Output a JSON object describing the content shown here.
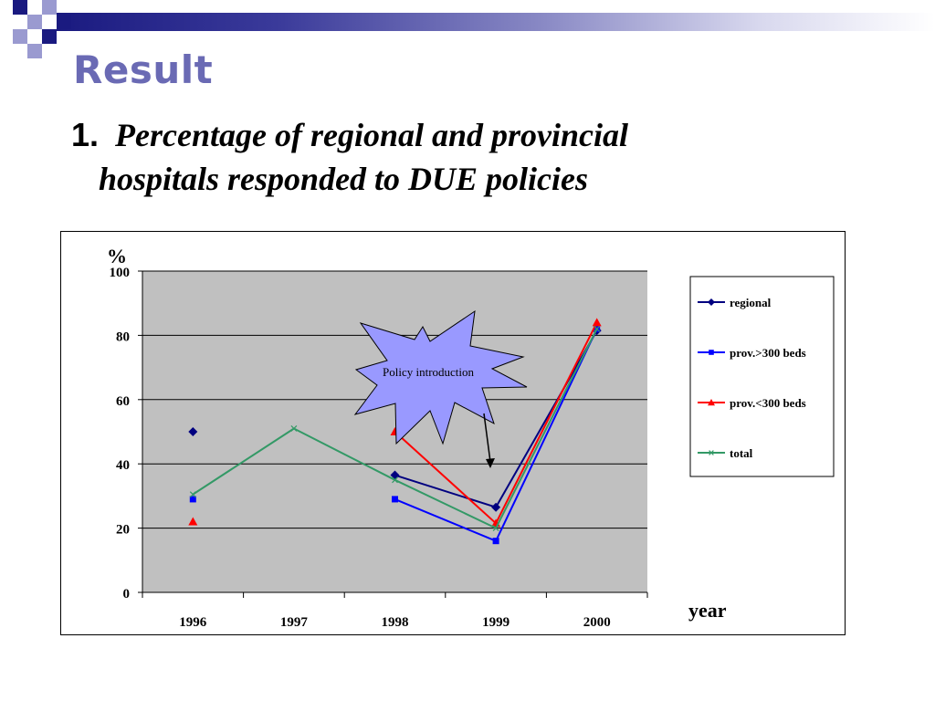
{
  "slide": {
    "title": "Result",
    "subtitle_number": "1.",
    "subtitle_line1": "Percentage of regional and provincial",
    "subtitle_line2": "hospitals responded to DUE policies"
  },
  "theme": {
    "title_color": "#6a6ab4",
    "header_dark": "#1a1a80",
    "header_light": "#9a9ad0"
  },
  "chart_data": {
    "type": "line",
    "ylabel": "%",
    "xlabel": "year",
    "categories": [
      "1996",
      "1997",
      "1998",
      "1999",
      "2000"
    ],
    "ylim": [
      0,
      100
    ],
    "yticks": [
      0,
      20,
      40,
      60,
      80,
      100
    ],
    "plot_background": "#c0c0c0",
    "grid": true,
    "legend_position": "right",
    "series": [
      {
        "name": "regional",
        "color": "#000080",
        "marker": "diamond",
        "values": [
          50,
          null,
          36.5,
          26.5,
          81.5
        ]
      },
      {
        "name": "prov.>300 beds",
        "color": "#0000ff",
        "marker": "square",
        "values": [
          29,
          null,
          29,
          16,
          82
        ]
      },
      {
        "name": "prov.<300 beds",
        "color": "#ff0000",
        "marker": "triangle",
        "values": [
          22,
          null,
          50,
          21.5,
          84
        ]
      },
      {
        "name": "total",
        "color": "#339966",
        "marker": "x",
        "values": [
          30.5,
          51,
          35,
          20,
          82
        ]
      }
    ],
    "annotation": {
      "text": "Policy introduction",
      "points_to": "1999",
      "fill": "#9999ff"
    }
  }
}
